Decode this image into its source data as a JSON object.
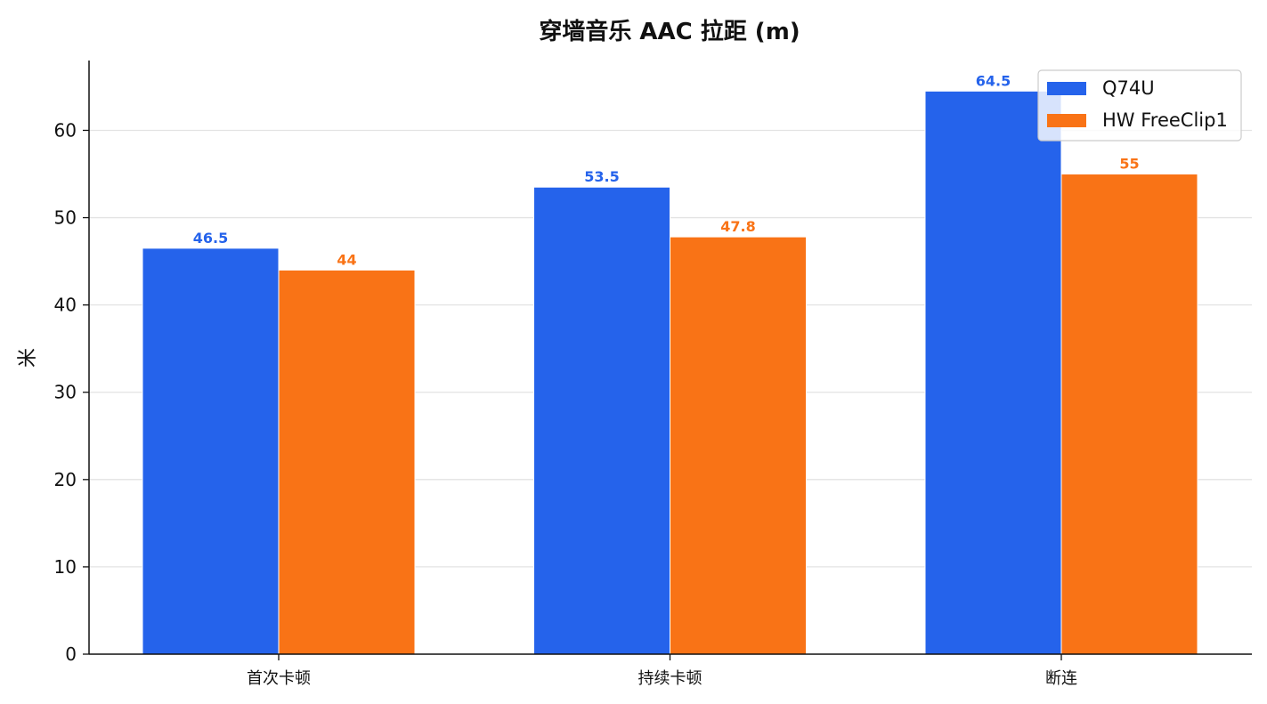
{
  "chart_data": {
    "type": "bar",
    "title": "穿墙音乐 AAC 拉距 (m)",
    "xlabel": "",
    "ylabel": "米",
    "categories": [
      "首次卡顿",
      "持续卡顿",
      "断连"
    ],
    "series": [
      {
        "name": "Q74U",
        "values": [
          46.5,
          53.5,
          64.5
        ],
        "labels": [
          "46.5",
          "53.5",
          "64.5"
        ],
        "color": "#2563eb"
      },
      {
        "name": "HW FreeClip1",
        "values": [
          44,
          47.8,
          55
        ],
        "labels": [
          "44",
          "47.8",
          "55"
        ],
        "color": "#f97316"
      }
    ],
    "ylim": [
      0,
      68
    ],
    "yticks": [
      0,
      10,
      20,
      30,
      40,
      50,
      60
    ],
    "ytick_labels": [
      "0",
      "10",
      "20",
      "30",
      "40",
      "50",
      "60"
    ],
    "grid": "y",
    "legend_position": "top-right"
  }
}
